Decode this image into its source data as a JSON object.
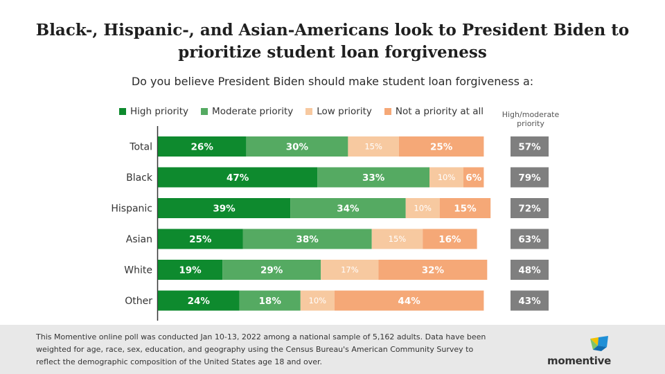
{
  "header": {
    "title_line1": "Black-, Hispanic-, and Asian-Americans look to President Biden to",
    "title_line2": "prioritize student loan forgiveness",
    "subtitle": "Do you believe President Biden should make student loan forgiveness a:"
  },
  "legend": {
    "items": [
      {
        "label": "High priority",
        "color": "#0e8a2e"
      },
      {
        "label": "Moderate priority",
        "color": "#55aa62"
      },
      {
        "label": "Low priority",
        "color": "#f7c9a0"
      },
      {
        "label": "Not a priority at all",
        "color": "#f5a877"
      }
    ],
    "hm_header_line1": "High/moderate",
    "hm_header_line2": "priority"
  },
  "chart_data": {
    "type": "bar",
    "orientation": "horizontal",
    "stacked": true,
    "categories": [
      "Total",
      "Black",
      "Hispanic",
      "Asian",
      "White",
      "Other"
    ],
    "series": [
      {
        "name": "High priority",
        "color": "#0e8a2e",
        "values": [
          26,
          47,
          39,
          25,
          19,
          24
        ],
        "labels": [
          "26%",
          "47%",
          "39%",
          "25%",
          "19%",
          "24%"
        ]
      },
      {
        "name": "Moderate priority",
        "color": "#55aa62",
        "values": [
          30,
          33,
          34,
          38,
          29,
          18
        ],
        "labels": [
          "30%",
          "33%",
          "34%",
          "38%",
          "29%",
          "18%"
        ]
      },
      {
        "name": "Low priority",
        "color": "#f7c9a0",
        "values": [
          15,
          10,
          10,
          15,
          17,
          10
        ],
        "labels": [
          "15%",
          "10%",
          "10%",
          "15%",
          "17%",
          "10%"
        ]
      },
      {
        "name": "Not a priority at all",
        "color": "#f5a877",
        "values": [
          25,
          6,
          15,
          16,
          32,
          44
        ],
        "labels": [
          "25%",
          "6%",
          "15%",
          "16%",
          "32%",
          "44%"
        ]
      }
    ],
    "high_moderate": [
      "57%",
      "79%",
      "72%",
      "63%",
      "48%",
      "43%"
    ],
    "high_moderate_color": "#7f7f7f",
    "legend_position": "top",
    "grid": false
  },
  "footer": {
    "note_line1": "This Momentive online poll was conducted Jan 10-13, 2022 among a national sample of 5,162 adults. Data have been",
    "note_line2": "weighted for age, race, sex, education, and geography using the Census Bureau's American Community Survey to",
    "note_line3": "reflect the demographic composition of the United States age 18 and over.",
    "brand": "momentive"
  }
}
